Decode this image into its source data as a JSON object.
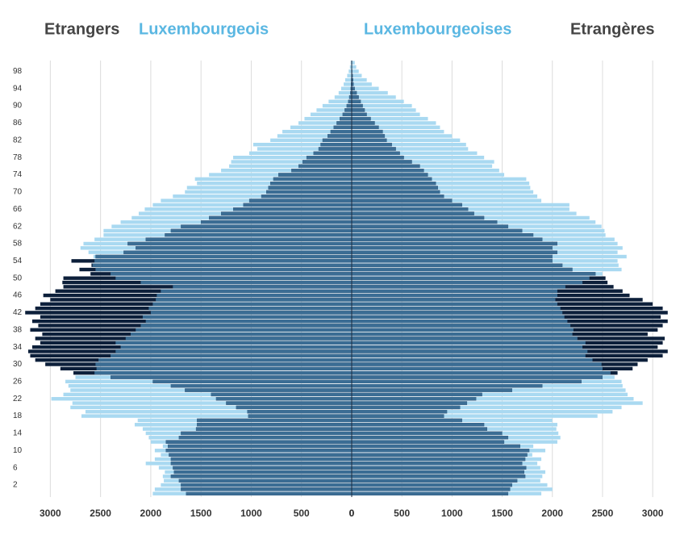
{
  "chart_data": [
    {
      "type": "pyramid-bar",
      "side": "left",
      "categories": [
        null,
        null,
        "2",
        null,
        null,
        null,
        "6",
        null,
        null,
        null,
        "10",
        null,
        null,
        null,
        "14",
        null,
        null,
        null,
        "18",
        null,
        null,
        null,
        "22",
        null,
        null,
        null,
        "26",
        null,
        null,
        null,
        "30",
        null,
        null,
        null,
        "34",
        null,
        null,
        null,
        "38",
        null,
        null,
        null,
        "42",
        null,
        null,
        null,
        "46",
        null,
        null,
        null,
        "50",
        null,
        null,
        null,
        "54",
        null,
        null,
        null,
        "58",
        null,
        null,
        null,
        "62",
        null,
        null,
        null,
        "66",
        null,
        null,
        null,
        "70",
        null,
        null,
        null,
        "74",
        null,
        null,
        null,
        "78",
        null,
        null,
        null,
        "82",
        null,
        null,
        null,
        "86",
        null,
        null,
        null,
        "90",
        null,
        null,
        null,
        "94",
        null,
        null,
        null,
        "98",
        null,
        null
      ],
      "xlim": [
        3300,
        0
      ],
      "xticks": [
        3000,
        2500,
        2000,
        1500,
        1000,
        500,
        0
      ],
      "grid": true,
      "series": [
        {
          "name": "Luxembourgeois",
          "color": "#a9d9f1",
          "values": [
            1980,
            1960,
            1900,
            1870,
            1880,
            1860,
            1920,
            2050,
            1960,
            1900,
            1960,
            1880,
            2000,
            2020,
            2050,
            2080,
            2160,
            2130,
            2690,
            2650,
            2800,
            2780,
            2990,
            2870,
            2800,
            2820,
            2850,
            2750,
            2560,
            2540,
            2550,
            2520,
            2400,
            2350,
            2300,
            2350,
            2250,
            2200,
            2150,
            2100,
            2050,
            2080,
            2000,
            2020,
            1980,
            1950,
            1940,
            1900,
            1780,
            2100,
            2350,
            2400,
            2550,
            2580,
            2560,
            2570,
            2620,
            2700,
            2670,
            2560,
            2470,
            2470,
            2390,
            2300,
            2190,
            2120,
            2060,
            1980,
            1900,
            1780,
            1660,
            1640,
            1540,
            1560,
            1420,
            1300,
            1220,
            1200,
            1180,
            1020,
            940,
            980,
            810,
            740,
            690,
            610,
            530,
            470,
            410,
            350,
            290,
            230,
            170,
            130,
            105,
            80,
            65,
            45,
            30,
            18,
            10
          ]
        },
        {
          "name": "Etrangers",
          "color": "#0c1f3a",
          "values": [
            1650,
            1700,
            1700,
            1720,
            1800,
            1770,
            1780,
            1800,
            1800,
            1820,
            1850,
            1830,
            1850,
            1720,
            1700,
            1550,
            1540,
            1540,
            1030,
            1040,
            1150,
            1250,
            1350,
            1400,
            1660,
            1800,
            1980,
            2400,
            2770,
            2900,
            3050,
            3150,
            3200,
            3220,
            3180,
            3100,
            3150,
            3080,
            3200,
            3120,
            3180,
            3100,
            3250,
            3150,
            3100,
            3000,
            3070,
            2950,
            2870,
            2880,
            2870,
            2600,
            2710,
            2590,
            2790,
            2550,
            2270,
            2150,
            2230,
            2050,
            1860,
            1800,
            1700,
            1500,
            1420,
            1300,
            1180,
            1080,
            1020,
            900,
            850,
            830,
            810,
            780,
            730,
            600,
            530,
            490,
            450,
            380,
            330,
            310,
            290,
            240,
            210,
            180,
            150,
            120,
            90,
            70,
            50,
            35,
            25,
            15,
            10,
            8,
            5,
            4,
            3,
            2,
            1
          ]
        }
      ]
    },
    {
      "type": "pyramid-bar",
      "side": "right",
      "xlim": [
        0,
        3200
      ],
      "xticks": [
        0,
        500,
        1000,
        1500,
        2000,
        2500,
        3000
      ],
      "grid": true,
      "series": [
        {
          "name": "Luxembourgeoises",
          "color": "#a9d9f1",
          "values": [
            1890,
            2000,
            1950,
            1880,
            1900,
            1930,
            1880,
            1850,
            1890,
            1800,
            1930,
            1810,
            2050,
            2080,
            2060,
            2040,
            2050,
            2000,
            2450,
            2600,
            2690,
            2900,
            2810,
            2750,
            2730,
            2700,
            2690,
            2620,
            2580,
            2500,
            2490,
            2400,
            2330,
            2350,
            2300,
            2330,
            2250,
            2200,
            2210,
            2180,
            2150,
            2120,
            2100,
            2080,
            2050,
            2030,
            2050,
            2050,
            2130,
            2300,
            2370,
            2500,
            2690,
            2660,
            2650,
            2740,
            2650,
            2700,
            2650,
            2620,
            2530,
            2520,
            2490,
            2430,
            2370,
            2240,
            2170,
            2170,
            1890,
            1850,
            1810,
            1780,
            1770,
            1740,
            1520,
            1470,
            1400,
            1420,
            1320,
            1250,
            1160,
            1140,
            1080,
            1000,
            920,
            880,
            840,
            760,
            680,
            640,
            600,
            520,
            440,
            360,
            270,
            200,
            150,
            100,
            70,
            45,
            30
          ]
        },
        {
          "name": "Etrangères",
          "color": "#0c1f3a",
          "values": [
            1560,
            1580,
            1600,
            1650,
            1730,
            1720,
            1740,
            1700,
            1730,
            1750,
            1770,
            1680,
            1520,
            1560,
            1500,
            1350,
            1320,
            1100,
            920,
            950,
            1080,
            1150,
            1240,
            1300,
            1600,
            1900,
            2290,
            2500,
            2650,
            2800,
            2850,
            2950,
            3100,
            3150,
            3050,
            3100,
            3120,
            2950,
            3050,
            3100,
            3150,
            3080,
            3150,
            3100,
            3000,
            2900,
            2770,
            2700,
            2610,
            2550,
            2530,
            2430,
            2200,
            2100,
            2000,
            2000,
            2050,
            2000,
            2050,
            1900,
            1810,
            1700,
            1560,
            1450,
            1320,
            1220,
            1160,
            1100,
            1000,
            920,
            880,
            860,
            840,
            800,
            760,
            720,
            680,
            600,
            520,
            480,
            440,
            400,
            350,
            330,
            310,
            270,
            230,
            190,
            150,
            130,
            110,
            90,
            70,
            50,
            30,
            20,
            15,
            10,
            5,
            3,
            2
          ]
        }
      ]
    }
  ]
}
